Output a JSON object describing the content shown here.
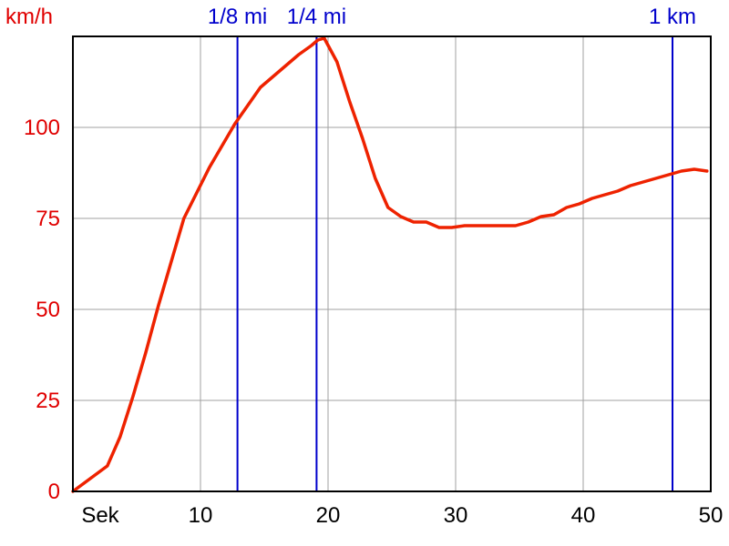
{
  "chart_data": {
    "type": "line",
    "ylabel": "km/h",
    "xlabel": "Sek",
    "xlim": [
      0,
      50
    ],
    "ylim": [
      0,
      125
    ],
    "grid": true,
    "x_ticks": [
      10,
      20,
      30,
      40,
      50
    ],
    "y_ticks": [
      0,
      25,
      50,
      75,
      100
    ],
    "series": [
      {
        "color": "#ee2200",
        "x": [
          0,
          2.7,
          3.7,
          4.7,
          5.7,
          6.7,
          7.7,
          8.7,
          9.7,
          10.7,
          11.7,
          12.7,
          13.7,
          14.7,
          15.7,
          16.7,
          17.7,
          18.7,
          19.2,
          19.7,
          20.7,
          21.7,
          22.7,
          23.7,
          24.7,
          25.7,
          26.7,
          27.7,
          28.7,
          29.7,
          30.7,
          31.7,
          32.7,
          33.7,
          34.7,
          35.7,
          36.7,
          37.7,
          38.7,
          39.7,
          40.7,
          41.7,
          42.7,
          43.7,
          44.7,
          45.7,
          46.7,
          47.7,
          48.7,
          49.7
        ],
        "y": [
          0,
          7,
          15,
          26,
          38,
          51,
          63,
          75,
          82,
          89,
          95,
          101,
          106,
          111,
          114,
          117,
          120,
          122.5,
          124,
          124.5,
          118,
          107,
          97,
          86,
          78,
          75.5,
          74,
          74,
          72.5,
          72.5,
          73,
          73,
          73,
          73,
          73,
          74,
          75.5,
          76,
          78,
          79,
          80.5,
          81.5,
          82.5,
          84,
          85,
          86,
          87,
          88,
          88.5,
          88
        ]
      }
    ],
    "markers": [
      {
        "label": "1/8 mi",
        "x": 12.9,
        "color": "#0000cc"
      },
      {
        "label": "1/4 mi",
        "x": 19.1,
        "color": "#0000cc"
      },
      {
        "label": "1 km",
        "x": 47.0,
        "color": "#0000cc"
      }
    ]
  }
}
